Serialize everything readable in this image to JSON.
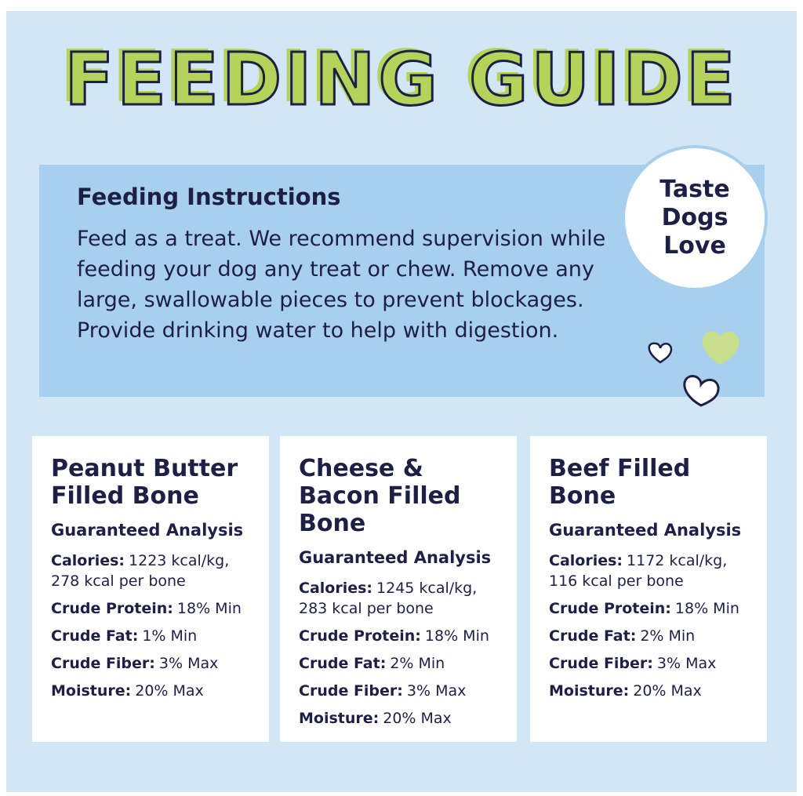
{
  "header": {
    "title": "FEEDING GUIDE"
  },
  "instructions": {
    "heading": "Feeding Instructions",
    "text": "Feed as a treat. We recommend supervision while feeding your dog any treat or chew. Remove any large, swallowable pieces to prevent blockages. Provide drinking water to help with digestion."
  },
  "badge": {
    "lines": [
      "Taste",
      "Dogs",
      "Love"
    ]
  },
  "cards": [
    {
      "title": "Peanut Butter Filled Bone",
      "subtitle": "Guaranteed Analysis",
      "rows": [
        [
          "Calories:",
          "1223 kcal/kg, 278 kcal per bone"
        ],
        [
          "Crude Protein:",
          "18% Min"
        ],
        [
          "Crude Fat:",
          "1% Min"
        ],
        [
          "Crude Fiber:",
          "3% Max"
        ],
        [
          "Moisture:",
          "20% Max"
        ]
      ]
    },
    {
      "title": "Cheese & Bacon Filled Bone",
      "subtitle": "Guaranteed Analysis",
      "rows": [
        [
          "Calories:",
          "1245 kcal/kg, 283 kcal per bone"
        ],
        [
          "Crude Protein:",
          "18% Min"
        ],
        [
          "Crude Fat:",
          "2% Min"
        ],
        [
          "Crude Fiber:",
          "3% Max"
        ],
        [
          "Moisture:",
          "20% Max"
        ]
      ]
    },
    {
      "title": "Beef Filled Bone",
      "subtitle": "Guaranteed Analysis",
      "rows": [
        [
          "Calories:",
          "1172 kcal/kg, 116 kcal per bone"
        ],
        [
          "Crude Protein:",
          "18% Min"
        ],
        [
          "Crude Fat:",
          "2% Min"
        ],
        [
          "Crude Fiber:",
          "3% Max"
        ],
        [
          "Moisture:",
          "20% Max"
        ]
      ]
    }
  ]
}
